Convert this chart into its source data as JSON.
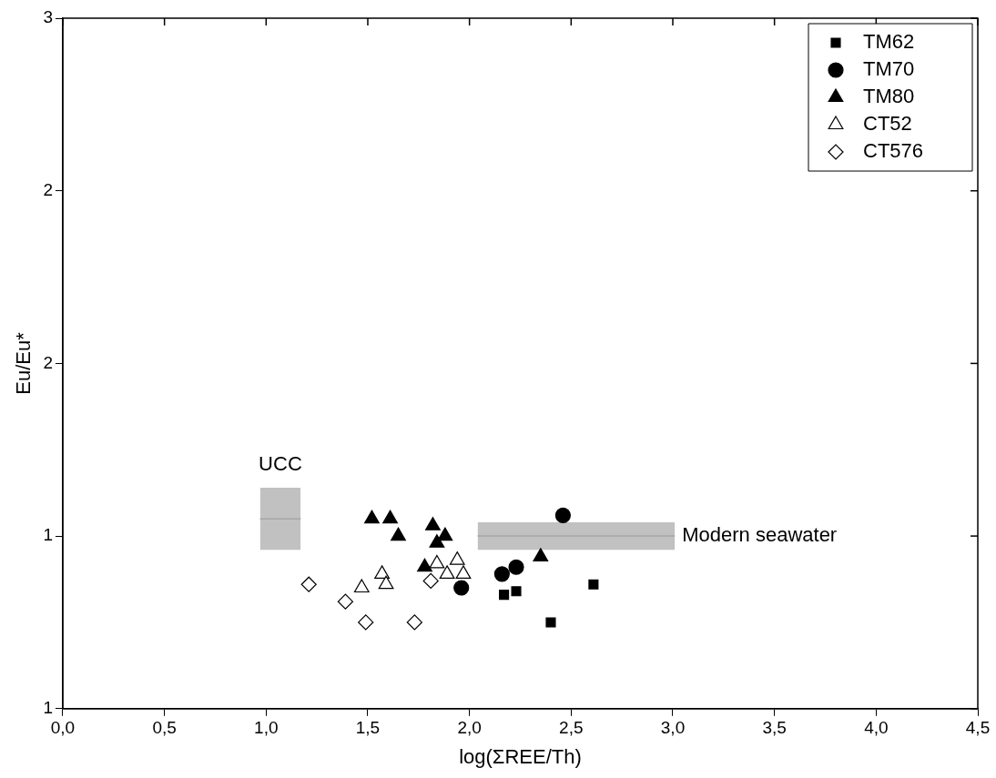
{
  "chart_data": {
    "type": "scatter",
    "xlabel": "log(ΣREE/Th)",
    "ylabel": "Eu/Eu*",
    "xlim": [
      0,
      4.5
    ],
    "xticks": [
      {
        "value": 0,
        "label": "0,0"
      },
      {
        "value": 0.5,
        "label": "0,5"
      },
      {
        "value": 1,
        "label": "1,0"
      },
      {
        "value": 1.5,
        "label": "1,5"
      },
      {
        "value": 2,
        "label": "2,0"
      },
      {
        "value": 2.5,
        "label": "2,5"
      },
      {
        "value": 3,
        "label": "3,0"
      },
      {
        "value": 3.5,
        "label": "3,5"
      },
      {
        "value": 4,
        "label": "4,0"
      },
      {
        "value": 4.5,
        "label": "4,5"
      }
    ],
    "ylim": [
      0.5,
      2.5
    ],
    "yticks": [
      {
        "value": 0.5,
        "label": "1"
      },
      {
        "value": 1,
        "label": "1"
      },
      {
        "value": 1.5,
        "label": "2"
      },
      {
        "value": 2,
        "label": "2"
      },
      {
        "value": 2.5,
        "label": "3"
      }
    ],
    "grid": false,
    "legend": "top right",
    "series": [
      {
        "name": "TM62",
        "color": "#000000",
        "marker": "square",
        "x": [
          2.17,
          2.23,
          2.61,
          2.4
        ],
        "values": [
          0.83,
          0.84,
          0.86,
          0.75
        ]
      },
      {
        "name": "TM70",
        "color": "#000000",
        "marker": "circle",
        "x": [
          2.46,
          2.16,
          2.23,
          1.96
        ],
        "values": [
          1.06,
          0.89,
          0.91,
          0.85
        ]
      },
      {
        "name": "TM80",
        "color": "#000000",
        "marker": "triangle",
        "x": [
          1.52,
          1.61,
          1.65,
          1.82,
          1.88,
          1.84,
          1.78,
          2.35
        ],
        "values": [
          1.05,
          1.05,
          1.0,
          1.03,
          1.0,
          0.98,
          0.91,
          0.94
        ]
      },
      {
        "name": "CT52",
        "color": "#ffffff",
        "marker": "triangle",
        "x": [
          1.57,
          1.47,
          1.59,
          1.84,
          1.94,
          1.89,
          1.97
        ],
        "values": [
          0.89,
          0.85,
          0.86,
          0.92,
          0.93,
          0.89,
          0.89
        ]
      },
      {
        "name": "CT576",
        "color": "#ffffff",
        "marker": "diamond",
        "x": [
          1.21,
          1.39,
          1.49,
          1.73,
          1.81
        ],
        "values": [
          0.86,
          0.81,
          0.75,
          0.75,
          0.87
        ]
      },
      {
        "type": "line",
        "name": "UCC",
        "color": "#a6a6a6",
        "x": [
          0.97,
          1.17
        ],
        "values": [
          1.05,
          1.05
        ],
        "lower": [
          0.96,
          0.96
        ],
        "upper": [
          1.14,
          1.14
        ]
      },
      {
        "type": "line",
        "name": "Modern seawater",
        "color": "#a6a6a6",
        "x": [
          2.04,
          3.01
        ],
        "values": [
          1.0,
          1.0
        ],
        "lower": [
          0.96,
          0.96
        ],
        "upper": [
          1.04,
          1.04
        ]
      }
    ]
  }
}
